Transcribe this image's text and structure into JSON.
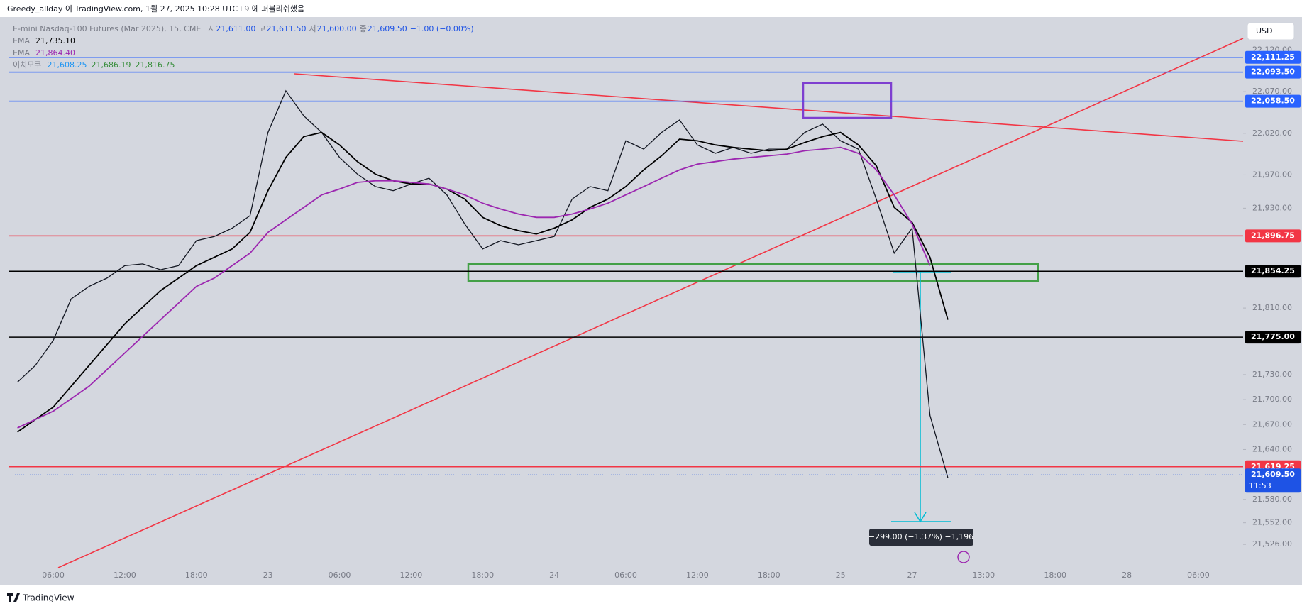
{
  "header": {
    "publisher": "Greedy_allday 이 TradingView.com, 1월 27, 2025 10:28 UTC+9 에 퍼블리쉬했음",
    "ohlc": [
      {
        "label": "시",
        "value": "21,611.00"
      },
      {
        "label": "고",
        "value": "21,611.50"
      },
      {
        "label": "저",
        "value": "21,600.00"
      },
      {
        "label": "종",
        "value": "21,609.50"
      }
    ],
    "change": "−1.00 (−0.00%)",
    "ichimoku": {
      "name": "이치모쿠",
      "values": [
        "21,608.25",
        "21,686.19",
        "21,816.75"
      ]
    },
    "currency": "USD"
  },
  "measure_label": "−299.00 (−1.37%) −1,196",
  "footer": "TradingView",
  "chart_data": {
    "type": "line",
    "categories": [
      null,
      null,
      "06:00",
      null,
      null,
      null,
      "12:00",
      null,
      null,
      null,
      "18:00",
      null,
      null,
      null,
      "23",
      null,
      null,
      null,
      "06:00",
      null,
      null,
      null,
      "12:00",
      null,
      null,
      null,
      "18:00",
      null,
      null,
      null,
      "24",
      null,
      null,
      null,
      "06:00",
      null,
      null,
      null,
      "12:00",
      null,
      null,
      null,
      "18:00",
      null,
      null,
      null,
      "25",
      null,
      null,
      null,
      "27",
      null,
      null,
      null,
      "13:00",
      null,
      null,
      null,
      "18:00",
      null,
      null,
      null,
      "28",
      null,
      null,
      null,
      "06:00",
      null,
      null
    ],
    "series": [
      {
        "name": "E-mini Nasdaq-100 Futures (Mar 2025), 15, CME",
        "color": "#131722",
        "values": [
          21721,
          21741,
          21771,
          21821,
          21836,
          21846,
          21861,
          21863,
          21856,
          21861,
          21891,
          21896,
          21906,
          21921,
          22021,
          22071,
          22041,
          22021,
          21991,
          21971,
          21956,
          21951,
          21959,
          21966,
          21946,
          21911,
          21881,
          21891,
          21886,
          21891,
          21896,
          21941,
          21956,
          21951,
          22011,
          22001,
          22021,
          22036,
          22006,
          21996,
          22003,
          21996,
          22001,
          22001,
          22021,
          22031,
          22011,
          22001,
          21941,
          21876,
          21906,
          21681,
          21606,
          null,
          null,
          null,
          null,
          null,
          null,
          null,
          null,
          null,
          null,
          null,
          null,
          null,
          null,
          null,
          null
        ]
      },
      {
        "name": "EMA",
        "color": "#000000",
        "legend_value": "21,735.10",
        "values": [
          21661,
          21676,
          21691,
          21716,
          21741,
          21766,
          21791,
          21811,
          21831,
          21846,
          21861,
          21871,
          21881,
          21901,
          21951,
          21991,
          22016,
          22021,
          22006,
          21986,
          21971,
          21963,
          21959,
          21959,
          21953,
          21941,
          21919,
          21909,
          21903,
          21899,
          21906,
          21916,
          21931,
          21941,
          21956,
          21976,
          21993,
          22013,
          22011,
          22006,
          22003,
          22001,
          21999,
          22001,
          22009,
          22016,
          22021,
          22006,
          21981,
          21931,
          21913,
          21871,
          21796,
          null,
          null,
          null,
          null,
          null,
          null,
          null,
          null,
          null,
          null,
          null,
          null,
          null,
          null,
          null,
          null
        ]
      },
      {
        "name": "EMA",
        "color": "#9c27b0",
        "legend_value": "21,864.40",
        "values": [
          21666,
          21676,
          21686,
          21701,
          21716,
          21736,
          21756,
          21776,
          21796,
          21816,
          21836,
          21846,
          21861,
          21876,
          21901,
          21916,
          21931,
          21946,
          21953,
          21961,
          21963,
          21963,
          21961,
          21959,
          21953,
          21946,
          21936,
          21929,
          21923,
          21919,
          21919,
          21923,
          21929,
          21936,
          21946,
          21956,
          21966,
          21976,
          21983,
          21986,
          21989,
          21991,
          21993,
          21995,
          21999,
          22001,
          22003,
          21996,
          21976,
          21946,
          21911,
          21861,
          null,
          null,
          null,
          null,
          null,
          null,
          null,
          null,
          null,
          null,
          null,
          null,
          null,
          null,
          null,
          null,
          null
        ]
      }
    ],
    "ylim": [
      21498,
      22152
    ],
    "yticks": [
      {
        "value": 22120,
        "label": "22,120.00"
      },
      {
        "value": 22070,
        "label": "22,070.00"
      },
      {
        "value": 22020,
        "label": "22,020.00"
      },
      {
        "value": 21970,
        "label": "21,970.00"
      },
      {
        "value": 21930,
        "label": "21,930.00"
      },
      {
        "value": 21810,
        "label": "21,810.00"
      },
      {
        "value": 21730,
        "label": "21,730.00"
      },
      {
        "value": 21700,
        "label": "21,700.00"
      },
      {
        "value": 21670,
        "label": "21,670.00"
      },
      {
        "value": 21640,
        "label": "21,640.00"
      },
      {
        "value": 21580,
        "label": "21,580.00"
      },
      {
        "value": 21552,
        "label": "21,552.00"
      },
      {
        "value": 21526,
        "label": "21,526.00"
      }
    ],
    "price_levels": [
      {
        "value": 22111.25,
        "label": "22,111.25",
        "color": "#2962ff"
      },
      {
        "value": 22093.5,
        "label": "22,093.50",
        "color": "#2962ff"
      },
      {
        "value": 22058.5,
        "label": "22,058.50",
        "color": "#2962ff"
      },
      {
        "value": 21896.75,
        "label": "21,896.75",
        "color": "#f23645"
      },
      {
        "value": 21854.25,
        "label": "21,854.25",
        "color": "#000000"
      },
      {
        "value": 21775,
        "label": "21,775.00",
        "color": "#000000"
      },
      {
        "value": 21619.25,
        "label": "21,619.25",
        "color": "#f23645"
      }
    ],
    "last_price": {
      "value": 21609.5,
      "label": "21,609.50",
      "countdown": "11:53",
      "color": "#1e53e5"
    },
    "grid": false
  }
}
